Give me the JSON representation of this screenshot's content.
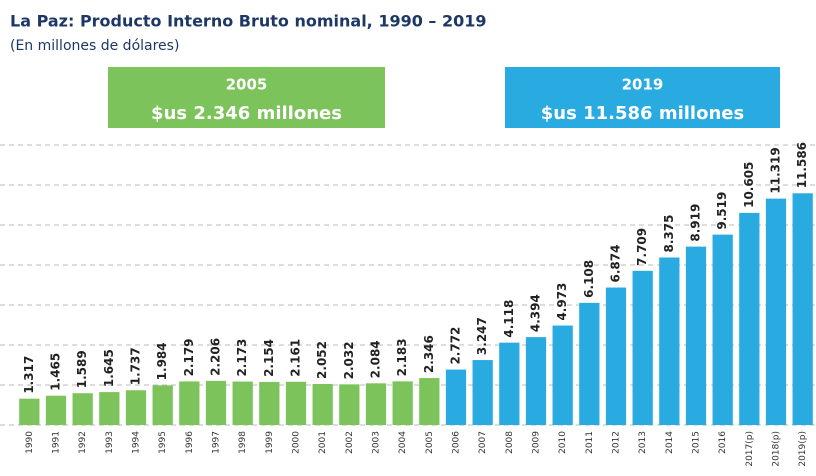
{
  "chart_data": {
    "type": "bar",
    "title": "La Paz: Producto Interno Bruto nominal, 1990 – 2019",
    "subtitle": "(En millones de dólares)",
    "categories": [
      "1990",
      "1991",
      "1992",
      "1993",
      "1994",
      "1995",
      "1996",
      "1997",
      "1998",
      "1999",
      "2000",
      "2001",
      "2002",
      "2003",
      "2004",
      "2005",
      "2006",
      "2007",
      "2008",
      "2009",
      "2010",
      "2011",
      "2012",
      "2013",
      "2014",
      "2015",
      "2016",
      "2017(p)",
      "2018(p)",
      "2019(p)"
    ],
    "values": [
      1317,
      1465,
      1589,
      1645,
      1737,
      1984,
      2179,
      2206,
      2173,
      2154,
      2161,
      2052,
      2032,
      2084,
      2183,
      2346,
      2772,
      3247,
      4118,
      4394,
      4973,
      6108,
      6874,
      7709,
      8375,
      8919,
      9519,
      10605,
      11319,
      11586
    ],
    "value_labels": [
      "1.317",
      "1.465",
      "1.589",
      "1.645",
      "1.737",
      "1.984",
      "2.179",
      "2.206",
      "2.173",
      "2.154",
      "2.161",
      "2.052",
      "2.032",
      "2.084",
      "2.183",
      "2.346",
      "2.772",
      "3.247",
      "4.118",
      "4.394",
      "4.973",
      "6.108",
      "6.874",
      "7.709",
      "8.375",
      "8.919",
      "9.519",
      "10.605",
      "11.319",
      "11.586"
    ],
    "colors": [
      "#7dc35b",
      "#7dc35b",
      "#7dc35b",
      "#7dc35b",
      "#7dc35b",
      "#7dc35b",
      "#7dc35b",
      "#7dc35b",
      "#7dc35b",
      "#7dc35b",
      "#7dc35b",
      "#7dc35b",
      "#7dc35b",
      "#7dc35b",
      "#7dc35b",
      "#7dc35b",
      "#29abe2",
      "#29abe2",
      "#29abe2",
      "#29abe2",
      "#29abe2",
      "#29abe2",
      "#29abe2",
      "#29abe2",
      "#29abe2",
      "#29abe2",
      "#29abe2",
      "#29abe2",
      "#29abe2",
      "#29abe2"
    ],
    "ylim": [
      0,
      14000
    ],
    "yticks": [
      0,
      2000,
      4000,
      6000,
      8000,
      10000,
      12000,
      14000
    ],
    "grid": true,
    "annotations": [
      {
        "title": "2005",
        "text": "$us 2.346 millones",
        "color": "#7dc35b"
      },
      {
        "title": "2019",
        "text": "$us 11.586 millones",
        "color": "#29abe2"
      }
    ]
  }
}
